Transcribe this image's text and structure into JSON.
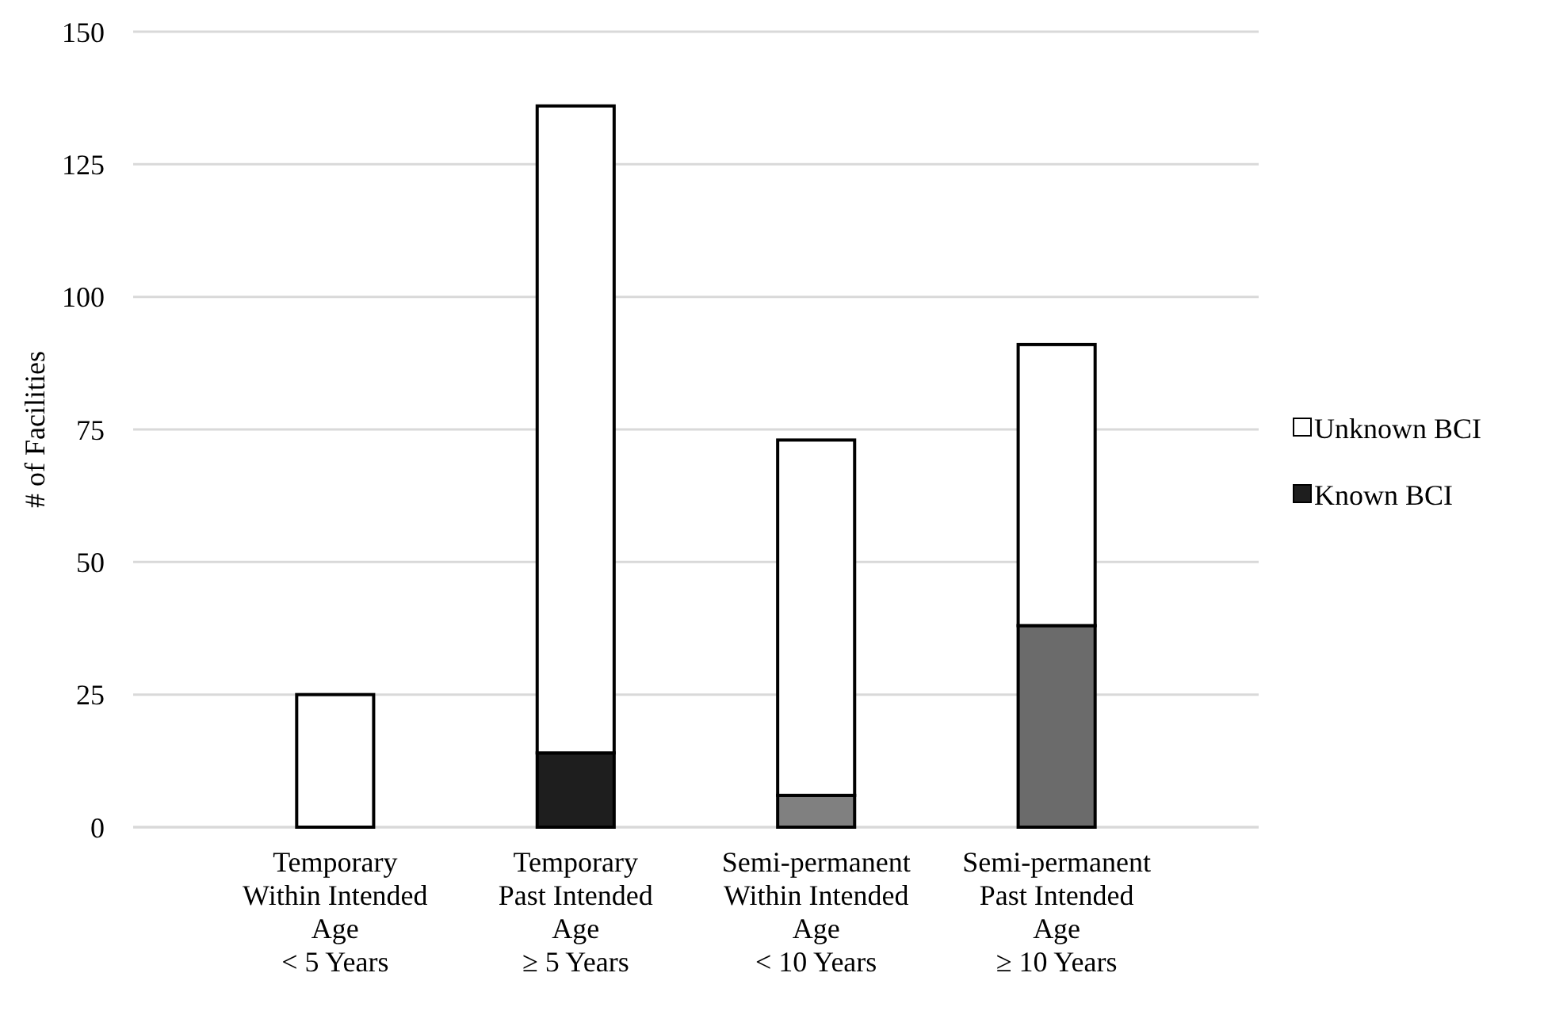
{
  "chart_data": {
    "type": "bar",
    "ylabel": "# of Facilities",
    "categories": [
      "Temporary\nWithin Intended\nAge\n< 5 Years",
      "Temporary\nPast Intended\nAge\n≥ 5 Years",
      "Semi-permanent\nWithin Intended\nAge\n< 10 Years",
      "Semi-permanent\nPast Intended\nAge\n≥ 10 Years"
    ],
    "stacked": true,
    "series": [
      {
        "name": "Known BCI",
        "color": "#1e1e1e",
        "colors": [
          "#1e1e1e",
          "#1e1e1e",
          "#808080",
          "#6b6b6b"
        ],
        "values": [
          0,
          14,
          6,
          38
        ]
      },
      {
        "name": "Unknown BCI",
        "color": "#ffffff",
        "values": [
          25,
          122,
          67,
          53
        ]
      }
    ],
    "ylim": [
      0,
      150
    ],
    "yticks": [
      0,
      25,
      50,
      75,
      100,
      125,
      150
    ],
    "grid": true,
    "legend": "right"
  }
}
